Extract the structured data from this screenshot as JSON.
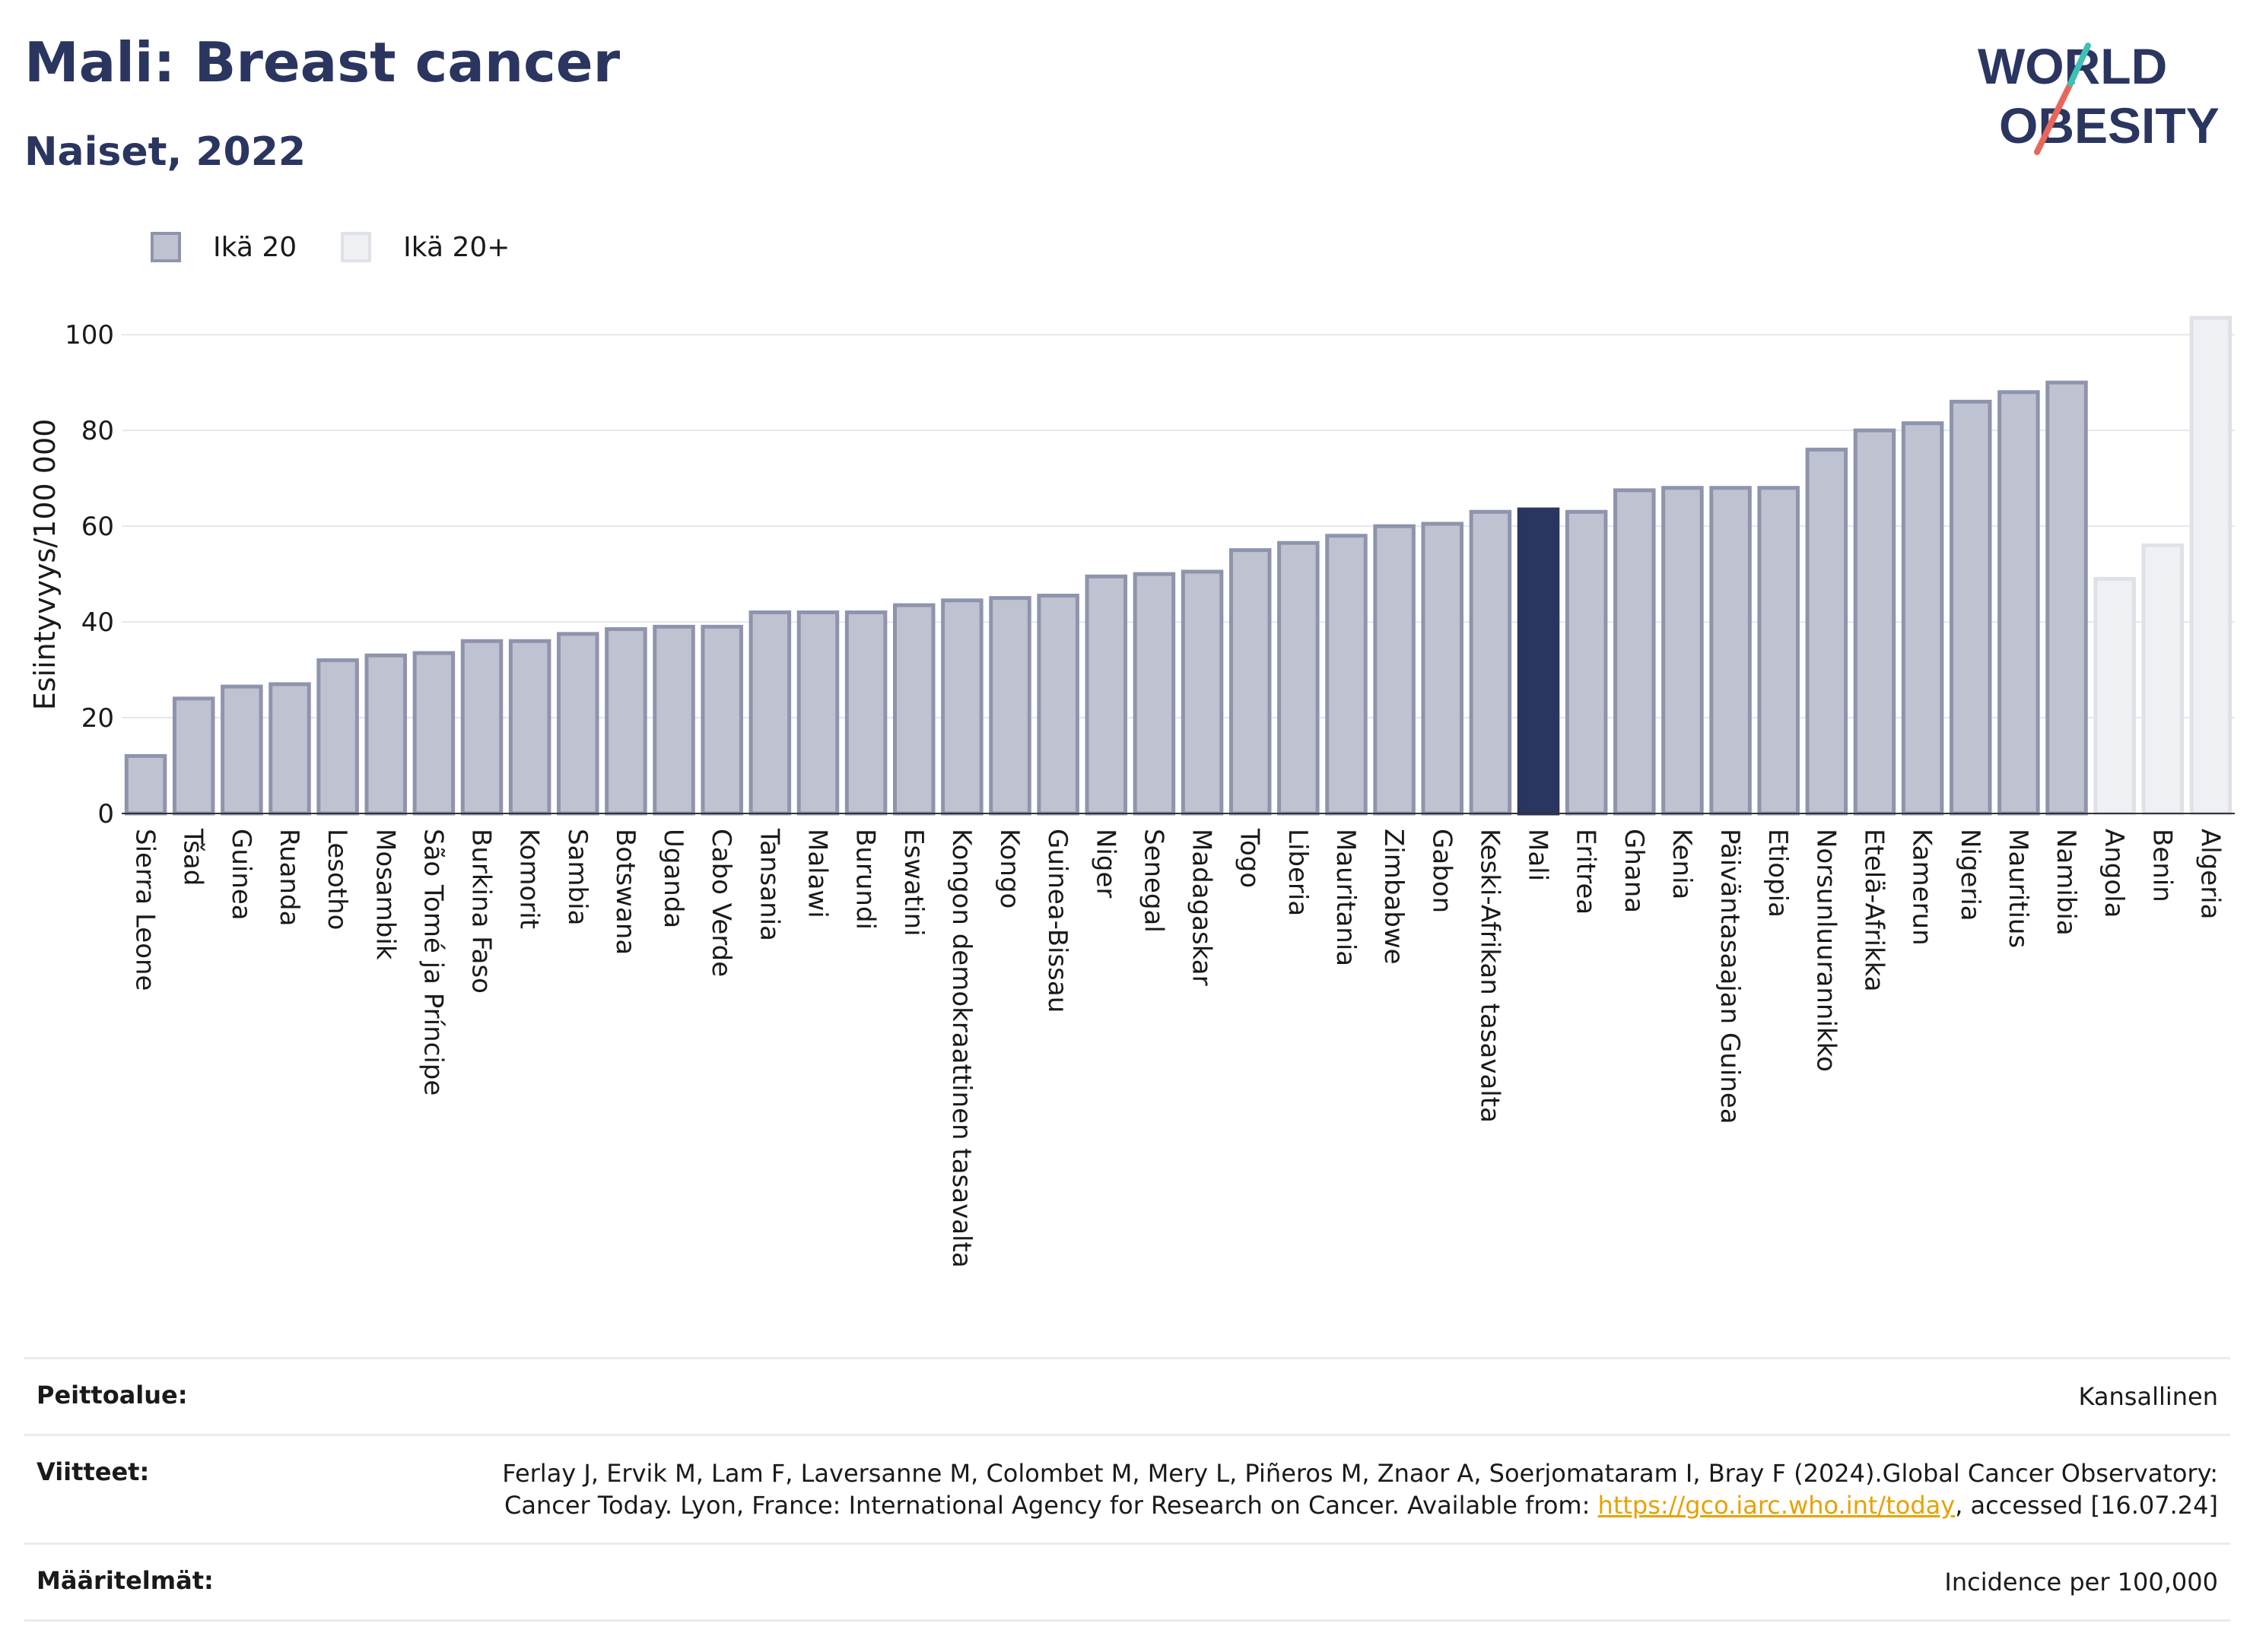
{
  "header": {
    "title": "Mali: Breast cancer",
    "subtitle": "Naiset, 2022"
  },
  "logo": {
    "line1": "WORLD",
    "line2": "OBESITY"
  },
  "legend": [
    {
      "label": "Ikä 20",
      "color": "#bfc2d0"
    },
    {
      "label": "Ikä 20+",
      "color": "#eff0f4"
    }
  ],
  "colors": {
    "primary": "#2a3560",
    "bar": "#bfc2d0",
    "bar_border": "#8e94ad",
    "bar_light": "#eff0f4",
    "grid": "#e5e7ee"
  },
  "chart_data": {
    "type": "bar",
    "ylabel": "Esiintyvyys/100 000",
    "ylim": [
      0,
      104
    ],
    "yticks": [
      0,
      20,
      40,
      60,
      80,
      100
    ],
    "grid": true,
    "legend_position": "top-left",
    "highlight": "Mali",
    "categories": [
      "Sierra Leone",
      "Tšad",
      "Guinea",
      "Ruanda",
      "Lesotho",
      "Mosambik",
      "São Tomé ja Príncipe",
      "Burkina Faso",
      "Komorit",
      "Sambia",
      "Botswana",
      "Uganda",
      "Cabo Verde",
      "Tansania",
      "Malawi",
      "Burundi",
      "Eswatini",
      "Kongon demokraattinen tasavalta",
      "Kongo",
      "Guinea-Bissau",
      "Niger",
      "Senegal",
      "Madagaskar",
      "Togo",
      "Liberia",
      "Mauritania",
      "Zimbabwe",
      "Gabon",
      "Keski-Afrikan tasavalta",
      "Mali",
      "Eritrea",
      "Ghana",
      "Kenia",
      "Päiväntasaajan Guinea",
      "Etiopia",
      "Norsunluurannikko",
      "Etelä-Afrikka",
      "Kamerun",
      "Nigeria",
      "Mauritius",
      "Namibia",
      "Angola",
      "Benin",
      "Algeria"
    ],
    "values": [
      12,
      24,
      26.5,
      27,
      32,
      33,
      33.5,
      36,
      36,
      37.5,
      38.5,
      39,
      39,
      42,
      42,
      42,
      43.5,
      44.5,
      45,
      45.5,
      49.5,
      50,
      50.5,
      55,
      56.5,
      58,
      60,
      60.5,
      63,
      63.5,
      63,
      67.5,
      68,
      68,
      68,
      76,
      80,
      81.5,
      86,
      88,
      90,
      49,
      56,
      103.5
    ],
    "series_group": [
      "Ikä 20",
      "Ikä 20",
      "Ikä 20",
      "Ikä 20",
      "Ikä 20",
      "Ikä 20",
      "Ikä 20",
      "Ikä 20",
      "Ikä 20",
      "Ikä 20",
      "Ikä 20",
      "Ikä 20",
      "Ikä 20",
      "Ikä 20",
      "Ikä 20",
      "Ikä 20",
      "Ikä 20",
      "Ikä 20",
      "Ikä 20",
      "Ikä 20",
      "Ikä 20",
      "Ikä 20",
      "Ikä 20",
      "Ikä 20",
      "Ikä 20",
      "Ikä 20",
      "Ikä 20",
      "Ikä 20",
      "Ikä 20",
      "Ikä 20",
      "Ikä 20",
      "Ikä 20",
      "Ikä 20",
      "Ikä 20",
      "Ikä 20",
      "Ikä 20",
      "Ikä 20",
      "Ikä 20",
      "Ikä 20",
      "Ikä 20",
      "Ikä 20",
      "Ikä 20+",
      "Ikä 20+",
      "Ikä 20+"
    ]
  },
  "footer": {
    "coverage_label": "Peittoalue:",
    "coverage_value": "Kansallinen",
    "references_label": "Viitteet:",
    "references_text": "Ferlay J, Ervik M, Lam F, Laversanne M, Colombet M, Mery L, Piñeros M, Znaor A, Soerjomataram I, Bray F (2024).Global Cancer Observatory: Cancer Today. Lyon, France: International Agency for Research on Cancer. Available from: ",
    "references_link": "https://gco.iarc.who.int/today",
    "references_tail": ", accessed [16.07.24]",
    "definitions_label": "Määritelmät:",
    "definitions_value": "Incidence per 100,000"
  }
}
